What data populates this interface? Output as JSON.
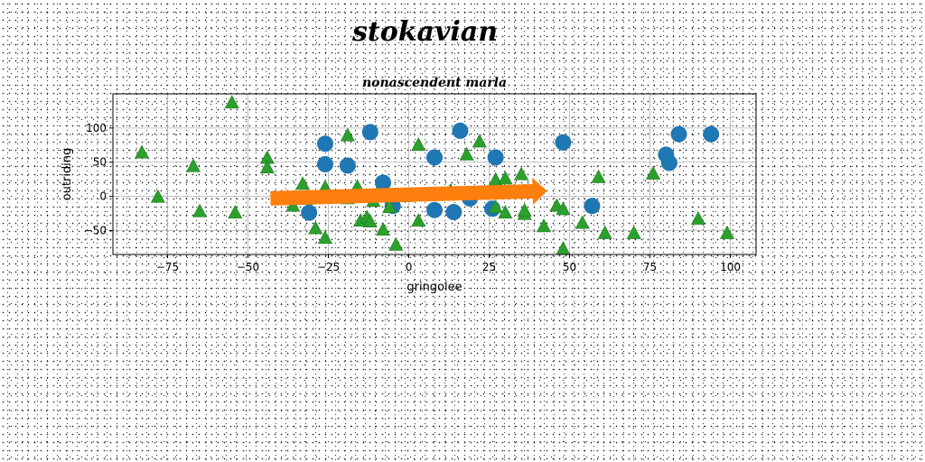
{
  "suptitle": "stokavian",
  "chart_data": {
    "type": "scatter",
    "title": "nonascendent marla",
    "xlabel": "gringolee",
    "ylabel": "outriding",
    "xlim": [
      -92,
      108
    ],
    "ylim": [
      -85,
      150
    ],
    "xticks": [
      -75,
      -50,
      -25,
      0,
      25,
      50,
      75,
      100
    ],
    "yticks": [
      -50,
      0,
      50,
      100
    ],
    "grid": true,
    "colors": {
      "circles": "#1f77b4",
      "arrow": "#ff7f0e",
      "triangles": "#2ca02c"
    },
    "series": [
      {
        "marker": "circle",
        "points": [
          [
            -26,
            77
          ],
          [
            -26,
            47
          ],
          [
            -19,
            45
          ],
          [
            -12,
            94
          ],
          [
            -8,
            20
          ],
          [
            -5,
            -14
          ],
          [
            -31,
            -24
          ],
          [
            8,
            57
          ],
          [
            8,
            -20
          ],
          [
            14,
            -23
          ],
          [
            16,
            96
          ],
          [
            19,
            -3
          ],
          [
            27,
            57
          ],
          [
            26,
            -18
          ],
          [
            48,
            79
          ],
          [
            57,
            -14
          ],
          [
            80,
            61
          ],
          [
            81,
            49
          ],
          [
            84,
            91
          ],
          [
            94,
            91
          ]
        ]
      },
      {
        "marker": "triangle",
        "points": [
          [
            -83,
            64
          ],
          [
            -78,
            -1
          ],
          [
            -67,
            44
          ],
          [
            -65,
            -22
          ],
          [
            -55,
            137
          ],
          [
            -54,
            -24
          ],
          [
            -44,
            56
          ],
          [
            -44,
            42
          ],
          [
            -36,
            -14
          ],
          [
            -33,
            18
          ],
          [
            -32,
            -4
          ],
          [
            -29,
            -47
          ],
          [
            -28,
            -2
          ],
          [
            -26,
            -61
          ],
          [
            -26,
            13
          ],
          [
            -19,
            89
          ],
          [
            -19,
            -3
          ],
          [
            -16,
            14
          ],
          [
            -15,
            -36
          ],
          [
            -13,
            -31
          ],
          [
            -12,
            -37
          ],
          [
            -11,
            -7
          ],
          [
            -10,
            3
          ],
          [
            -8,
            -49
          ],
          [
            -6,
            -16
          ],
          [
            -4,
            -71
          ],
          [
            -1,
            0
          ],
          [
            3,
            -36
          ],
          [
            3,
            75
          ],
          [
            13,
            8
          ],
          [
            18,
            61
          ],
          [
            22,
            80
          ],
          [
            27,
            24
          ],
          [
            27,
            -16
          ],
          [
            30,
            26
          ],
          [
            30,
            -24
          ],
          [
            35,
            32
          ],
          [
            36,
            -26
          ],
          [
            36,
            -21
          ],
          [
            42,
            -44
          ],
          [
            46,
            -14
          ],
          [
            48,
            -77
          ],
          [
            48,
            -19
          ],
          [
            54,
            -39
          ],
          [
            59,
            28
          ],
          [
            61,
            -54
          ],
          [
            70,
            -54
          ],
          [
            76,
            33
          ],
          [
            90,
            -33
          ],
          [
            99,
            -54
          ]
        ]
      },
      {
        "marker": "arrow",
        "start": [
          -43,
          -3
        ],
        "end": [
          43,
          8
        ]
      }
    ]
  }
}
